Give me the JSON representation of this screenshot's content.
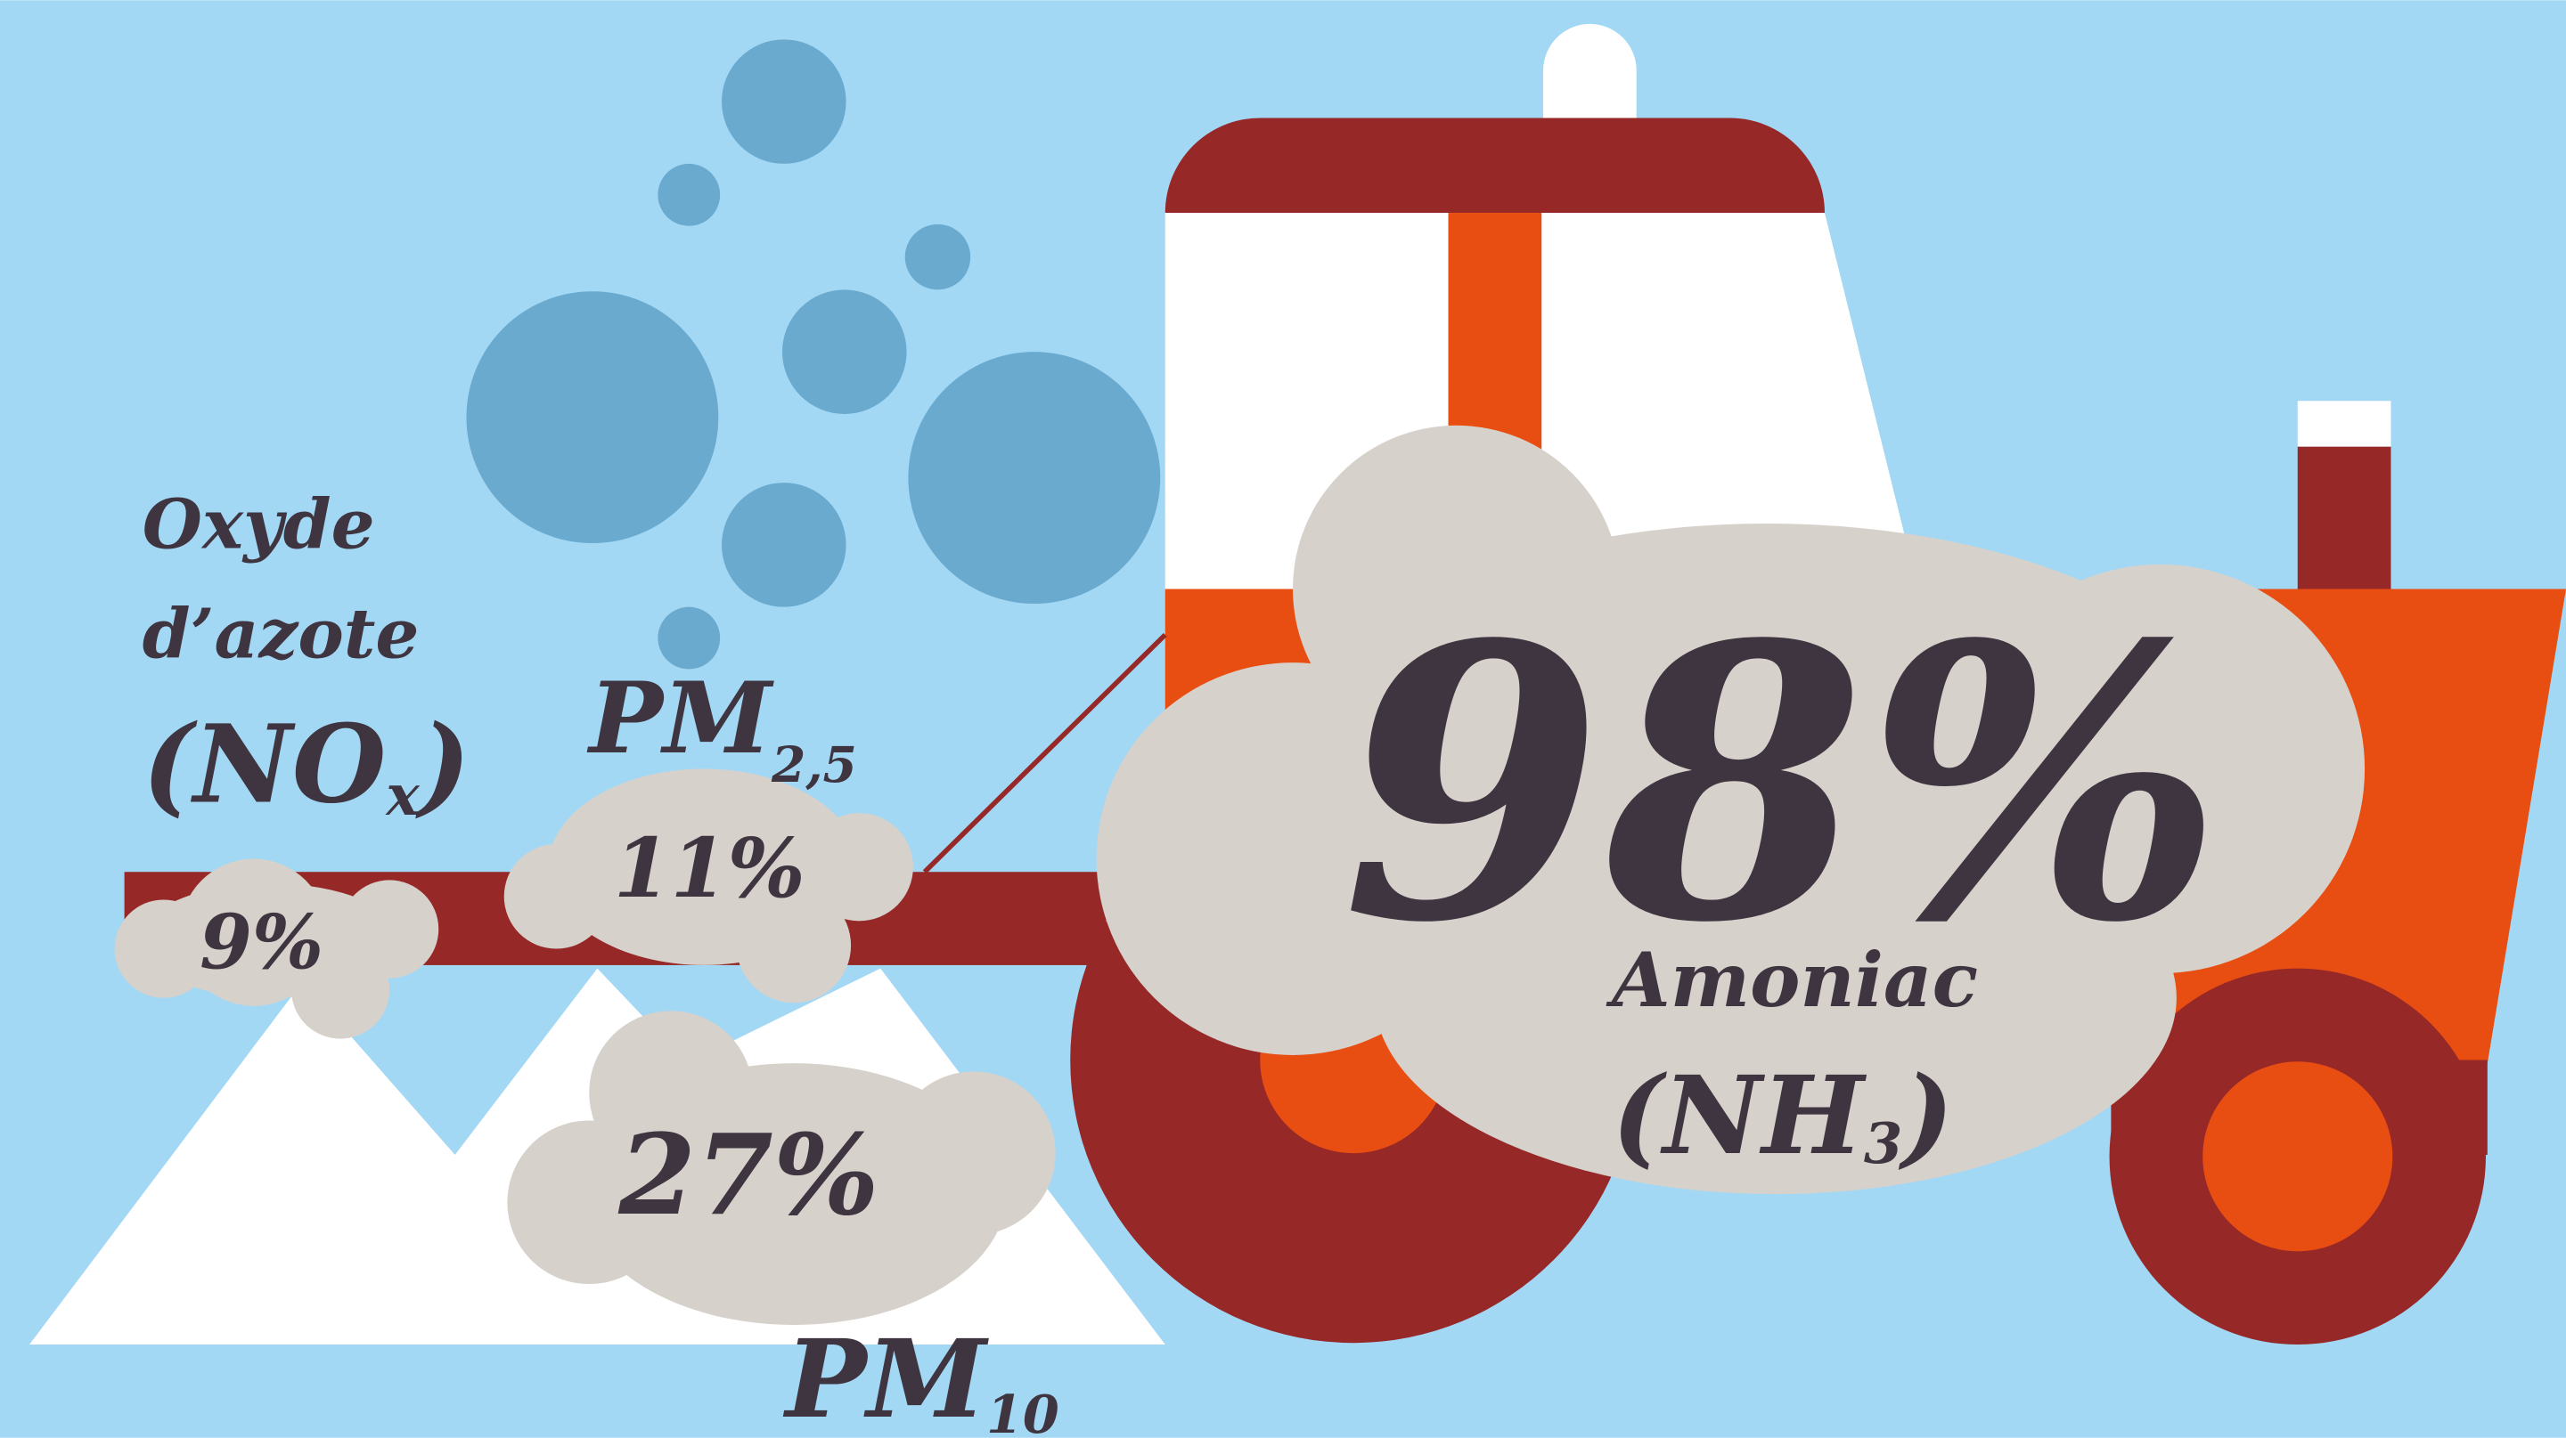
{
  "items": [
    {
      "name": [
        "Oxyde",
        "d’azote"
      ],
      "formula": [
        "(NO",
        "x",
        ")"
      ],
      "value": "9%"
    },
    {
      "name": [
        "PM",
        "2,5"
      ],
      "value": "11%"
    },
    {
      "name": [
        "PM",
        "10"
      ],
      "value": "27%"
    },
    {
      "name": [
        "Amoniac"
      ],
      "formula": [
        "(NH",
        "3",
        ")"
      ],
      "value": "98%"
    }
  ]
}
